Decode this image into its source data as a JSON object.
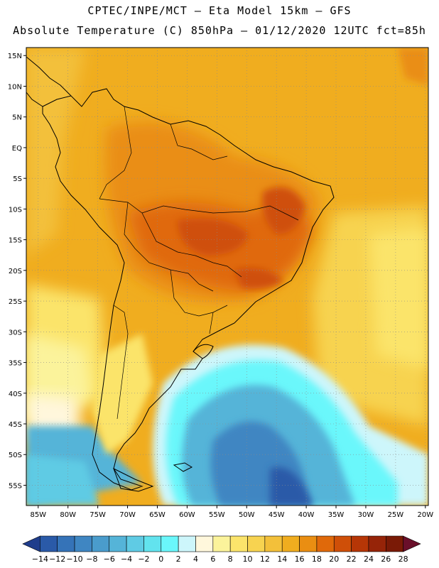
{
  "header": {
    "line1": "CPTEC/INPE/MCT –  Eta Model 15km – GFS",
    "line2": "Absolute Temperature (C) 850hPa – 01/12/2020 12UTC fct=85h"
  },
  "axes": {
    "lat_labels": [
      "15N",
      "10N",
      "5N",
      "EQ",
      "5S",
      "10S",
      "15S",
      "20S",
      "25S",
      "30S",
      "35S",
      "40S",
      "45S",
      "50S",
      "55S"
    ],
    "lat_values": [
      15,
      10,
      5,
      0,
      -5,
      -10,
      -15,
      -20,
      -25,
      -30,
      -35,
      -40,
      -45,
      -50,
      -55
    ],
    "lon_labels": [
      "85W",
      "80W",
      "75W",
      "70W",
      "65W",
      "60W",
      "55W",
      "50W",
      "45W",
      "40W",
      "35W",
      "30W",
      "25W",
      "20W"
    ],
    "lon_values": [
      -85,
      -80,
      -75,
      -70,
      -65,
      -60,
      -55,
      -50,
      -45,
      -40,
      -35,
      -30,
      -25,
      -20
    ]
  },
  "colorbar": {
    "labels": [
      "-14",
      "-12",
      "-10",
      "-8",
      "-6",
      "-4",
      "-2",
      "0",
      "2",
      "4",
      "6",
      "8",
      "10",
      "12",
      "14",
      "16",
      "18",
      "20",
      "22",
      "24",
      "26",
      "28"
    ],
    "colors": [
      "#1f3d8c",
      "#2a5aa8",
      "#3573b8",
      "#3f86c2",
      "#4a9ccc",
      "#55b4d8",
      "#5fcbe4",
      "#62e3ee",
      "#6af7fb",
      "#cdf6fb",
      "#fff7dc",
      "#fbf39b",
      "#fbe46b",
      "#f7d350",
      "#f3c03a",
      "#f0ad1f",
      "#ea8e12",
      "#e0690a",
      "#cf4f08",
      "#b63606",
      "#962408",
      "#7a1a06",
      "#6a0f2a"
    ],
    "unit": "C"
  },
  "map_colors": {
    "land_outline": "#000000",
    "grid": "#9a9a9a",
    "warm": "#f0ad1f",
    "hot": "#e0690a",
    "hottest": "#cf4f08",
    "cool": "#62e3ee",
    "cold": "#3f86c2",
    "coldest": "#2a5aa8"
  }
}
